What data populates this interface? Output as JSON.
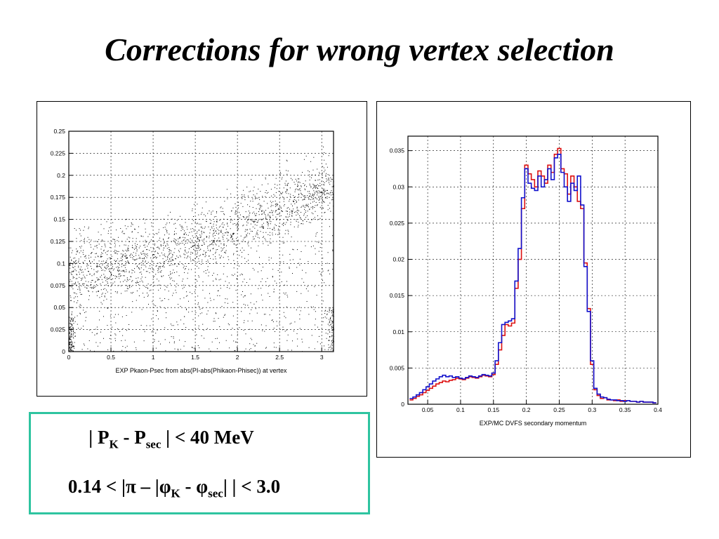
{
  "slide": {
    "title": "Corrections for wrong vertex selection"
  },
  "cuts": {
    "line1": {
      "a": "| P",
      "a_sub": "K",
      "b": " - P",
      "b_sub": "sec",
      "c": " | < 40 MeV"
    },
    "line2": {
      "a": "0.14 < |π – |φ",
      "a_sub": "K",
      "b": " - φ",
      "b_sub": "sec",
      "c": "| | < 3.0"
    }
  },
  "colors": {
    "box_border": "#2ec4a0",
    "exp_series": "#dd1111",
    "mc_series": "#1111cc"
  },
  "chart_data": [
    {
      "type": "scatter",
      "xlabel": "EXP Pkaon-Psec from abs(PI-abs(Phikaon-Phisec)) at vertex",
      "ylabel": "",
      "xlim": [
        0,
        3.14
      ],
      "ylim": [
        0,
        0.25
      ],
      "grid": true,
      "xticks": [
        0,
        0.5,
        1,
        1.5,
        2,
        2.5,
        3
      ],
      "xtick_labels": [
        "0",
        "0.5",
        "1",
        "1.5",
        "2",
        "2.5",
        "3"
      ],
      "yticks": [
        0,
        0.025,
        0.05,
        0.075,
        0.1,
        0.125,
        0.15,
        0.175,
        0.2,
        0.225,
        0.25
      ],
      "ytick_labels": [
        "0",
        "0.025",
        "0.05",
        "0.075",
        "0.1",
        "0.125",
        "0.15",
        "0.175",
        "0.2",
        "0.225",
        "0.25"
      ],
      "density_ridge": [
        {
          "x": 0.0,
          "y": 0.09
        },
        {
          "x": 0.5,
          "y": 0.1
        },
        {
          "x": 1.0,
          "y": 0.105
        },
        {
          "x": 1.5,
          "y": 0.12
        },
        {
          "x": 2.0,
          "y": 0.14
        },
        {
          "x": 2.5,
          "y": 0.165
        },
        {
          "x": 3.0,
          "y": 0.185
        }
      ]
    },
    {
      "type": "line",
      "xlabel": "EXP/MC DVFS secondary momentum",
      "ylabel": "",
      "xlim": [
        0.02,
        0.4
      ],
      "ylim": [
        0,
        0.037
      ],
      "grid": true,
      "xticks": [
        0.05,
        0.1,
        0.15,
        0.2,
        0.25,
        0.3,
        0.35,
        0.4
      ],
      "xtick_labels": [
        "0.05",
        "0.1",
        "0.15",
        "0.2",
        "0.25",
        "0.3",
        "0.35",
        "0.4"
      ],
      "yticks": [
        0,
        0.005,
        0.01,
        0.015,
        0.02,
        0.025,
        0.03,
        0.035
      ],
      "ytick_labels": [
        "0",
        "0.005",
        "0.01",
        "0.015",
        "0.02",
        "0.025",
        "0.03",
        "0.035"
      ],
      "series": [
        {
          "x": [
            0.025,
            0.03,
            0.035,
            0.04,
            0.045,
            0.05,
            0.055,
            0.06,
            0.065,
            0.07,
            0.075,
            0.08,
            0.085,
            0.09,
            0.095,
            0.1,
            0.105,
            0.11,
            0.115,
            0.12,
            0.125,
            0.13,
            0.135,
            0.14,
            0.145,
            0.15,
            0.155,
            0.16,
            0.165,
            0.17,
            0.175,
            0.18,
            0.185,
            0.19,
            0.195,
            0.2,
            0.205,
            0.21,
            0.215,
            0.22,
            0.225,
            0.23,
            0.235,
            0.24,
            0.245,
            0.25,
            0.255,
            0.26,
            0.265,
            0.27,
            0.275,
            0.28,
            0.285,
            0.29,
            0.295,
            0.3,
            0.305,
            0.31,
            0.315,
            0.32,
            0.325,
            0.33,
            0.335,
            0.34,
            0.345,
            0.35,
            0.355,
            0.36,
            0.365,
            0.37,
            0.375,
            0.38,
            0.385,
            0.39,
            0.395
          ],
          "values": [
            0.0006,
            0.0008,
            0.0011,
            0.0013,
            0.0016,
            0.0019,
            0.0022,
            0.0025,
            0.0028,
            0.003,
            0.0032,
            0.0031,
            0.0033,
            0.0034,
            0.0036,
            0.0035,
            0.0034,
            0.0036,
            0.0038,
            0.0037,
            0.0036,
            0.0038,
            0.004,
            0.0039,
            0.0038,
            0.0041,
            0.0055,
            0.0075,
            0.0095,
            0.011,
            0.0108,
            0.0112,
            0.016,
            0.02,
            0.027,
            0.033,
            0.0318,
            0.031,
            0.03,
            0.0322,
            0.0315,
            0.0305,
            0.033,
            0.032,
            0.0345,
            0.0353,
            0.0325,
            0.0318,
            0.029,
            0.0315,
            0.03,
            0.028,
            0.027,
            0.0195,
            0.0132,
            0.0055,
            0.002,
            0.0012,
            0.0008,
            0.0009,
            0.0006,
            0.0006,
            0.0005,
            0.0006,
            0.0004,
            0.0005,
            0.0005,
            0.0004,
            0.0004,
            0.0003,
            0.0004,
            0.0003,
            0.0003,
            0.0003,
            0.0002
          ]
        },
        {
          "x": [
            0.025,
            0.03,
            0.035,
            0.04,
            0.045,
            0.05,
            0.055,
            0.06,
            0.065,
            0.07,
            0.075,
            0.08,
            0.085,
            0.09,
            0.095,
            0.1,
            0.105,
            0.11,
            0.115,
            0.12,
            0.125,
            0.13,
            0.135,
            0.14,
            0.145,
            0.15,
            0.155,
            0.16,
            0.165,
            0.17,
            0.175,
            0.18,
            0.185,
            0.19,
            0.195,
            0.2,
            0.205,
            0.21,
            0.215,
            0.22,
            0.225,
            0.23,
            0.235,
            0.24,
            0.245,
            0.25,
            0.255,
            0.26,
            0.265,
            0.27,
            0.275,
            0.28,
            0.285,
            0.29,
            0.295,
            0.3,
            0.305,
            0.31,
            0.315,
            0.32,
            0.325,
            0.33,
            0.335,
            0.34,
            0.345,
            0.35,
            0.355,
            0.36,
            0.365,
            0.37,
            0.375,
            0.38,
            0.385,
            0.39,
            0.395
          ],
          "values": [
            0.0008,
            0.001,
            0.0013,
            0.0016,
            0.002,
            0.0024,
            0.0028,
            0.0032,
            0.0035,
            0.0038,
            0.004,
            0.0038,
            0.0039,
            0.0037,
            0.0038,
            0.0036,
            0.0035,
            0.0037,
            0.0039,
            0.0038,
            0.0037,
            0.0039,
            0.0041,
            0.004,
            0.0039,
            0.0043,
            0.006,
            0.0085,
            0.011,
            0.0113,
            0.0115,
            0.0118,
            0.017,
            0.0215,
            0.0285,
            0.0325,
            0.0305,
            0.0298,
            0.0295,
            0.0315,
            0.03,
            0.031,
            0.0325,
            0.031,
            0.034,
            0.0345,
            0.032,
            0.03,
            0.028,
            0.0305,
            0.0295,
            0.0315,
            0.0275,
            0.019,
            0.0128,
            0.006,
            0.0022,
            0.0014,
            0.001,
            0.0009,
            0.0007,
            0.0006,
            0.0006,
            0.0005,
            0.0005,
            0.0004,
            0.0005,
            0.0004,
            0.0004,
            0.0003,
            0.0004,
            0.0003,
            0.0003,
            0.0003,
            0.0002
          ]
        }
      ]
    }
  ]
}
